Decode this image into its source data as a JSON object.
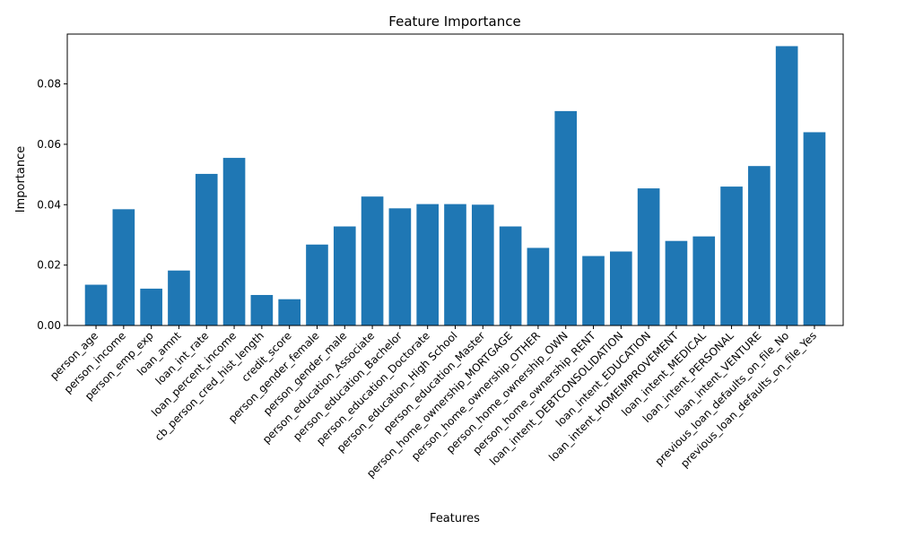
{
  "chart_data": {
    "type": "bar",
    "title": "Feature Importance",
    "xlabel": "Features",
    "ylabel": "Importance",
    "ylim": [
      0,
      0.0965
    ],
    "yticks": [
      "0.00",
      "0.02",
      "0.04",
      "0.06",
      "0.08"
    ],
    "grid": false,
    "bar_color": "#1f77b4",
    "categories": [
      "person_age",
      "person_income",
      "person_emp_exp",
      "loan_amnt",
      "loan_int_rate",
      "loan_percent_income",
      "cb_person_cred_hist_length",
      "credit_score",
      "person_gender_female",
      "person_gender_male",
      "person_education_Associate",
      "person_education_Bachelor",
      "person_education_Doctorate",
      "person_education_High School",
      "person_education_Master",
      "person_home_ownership_MORTGAGE",
      "person_home_ownership_OTHER",
      "person_home_ownership_OWN",
      "person_home_ownership_RENT",
      "loan_intent_DEBTCONSOLIDATION",
      "loan_intent_EDUCATION",
      "loan_intent_HOMEIMPROVEMENT",
      "loan_intent_MEDICAL",
      "loan_intent_PERSONAL",
      "loan_intent_VENTURE",
      "previous_loan_defaults_on_file_No",
      "previous_loan_defaults_on_file_Yes"
    ],
    "values": [
      0.0135,
      0.0385,
      0.0122,
      0.0182,
      0.0502,
      0.0555,
      0.0101,
      0.0087,
      0.0268,
      0.0328,
      0.0427,
      0.0388,
      0.0402,
      0.0402,
      0.04,
      0.0328,
      0.0257,
      0.071,
      0.023,
      0.0245,
      0.0454,
      0.028,
      0.0295,
      0.046,
      0.0528,
      0.0925,
      0.064
    ]
  }
}
